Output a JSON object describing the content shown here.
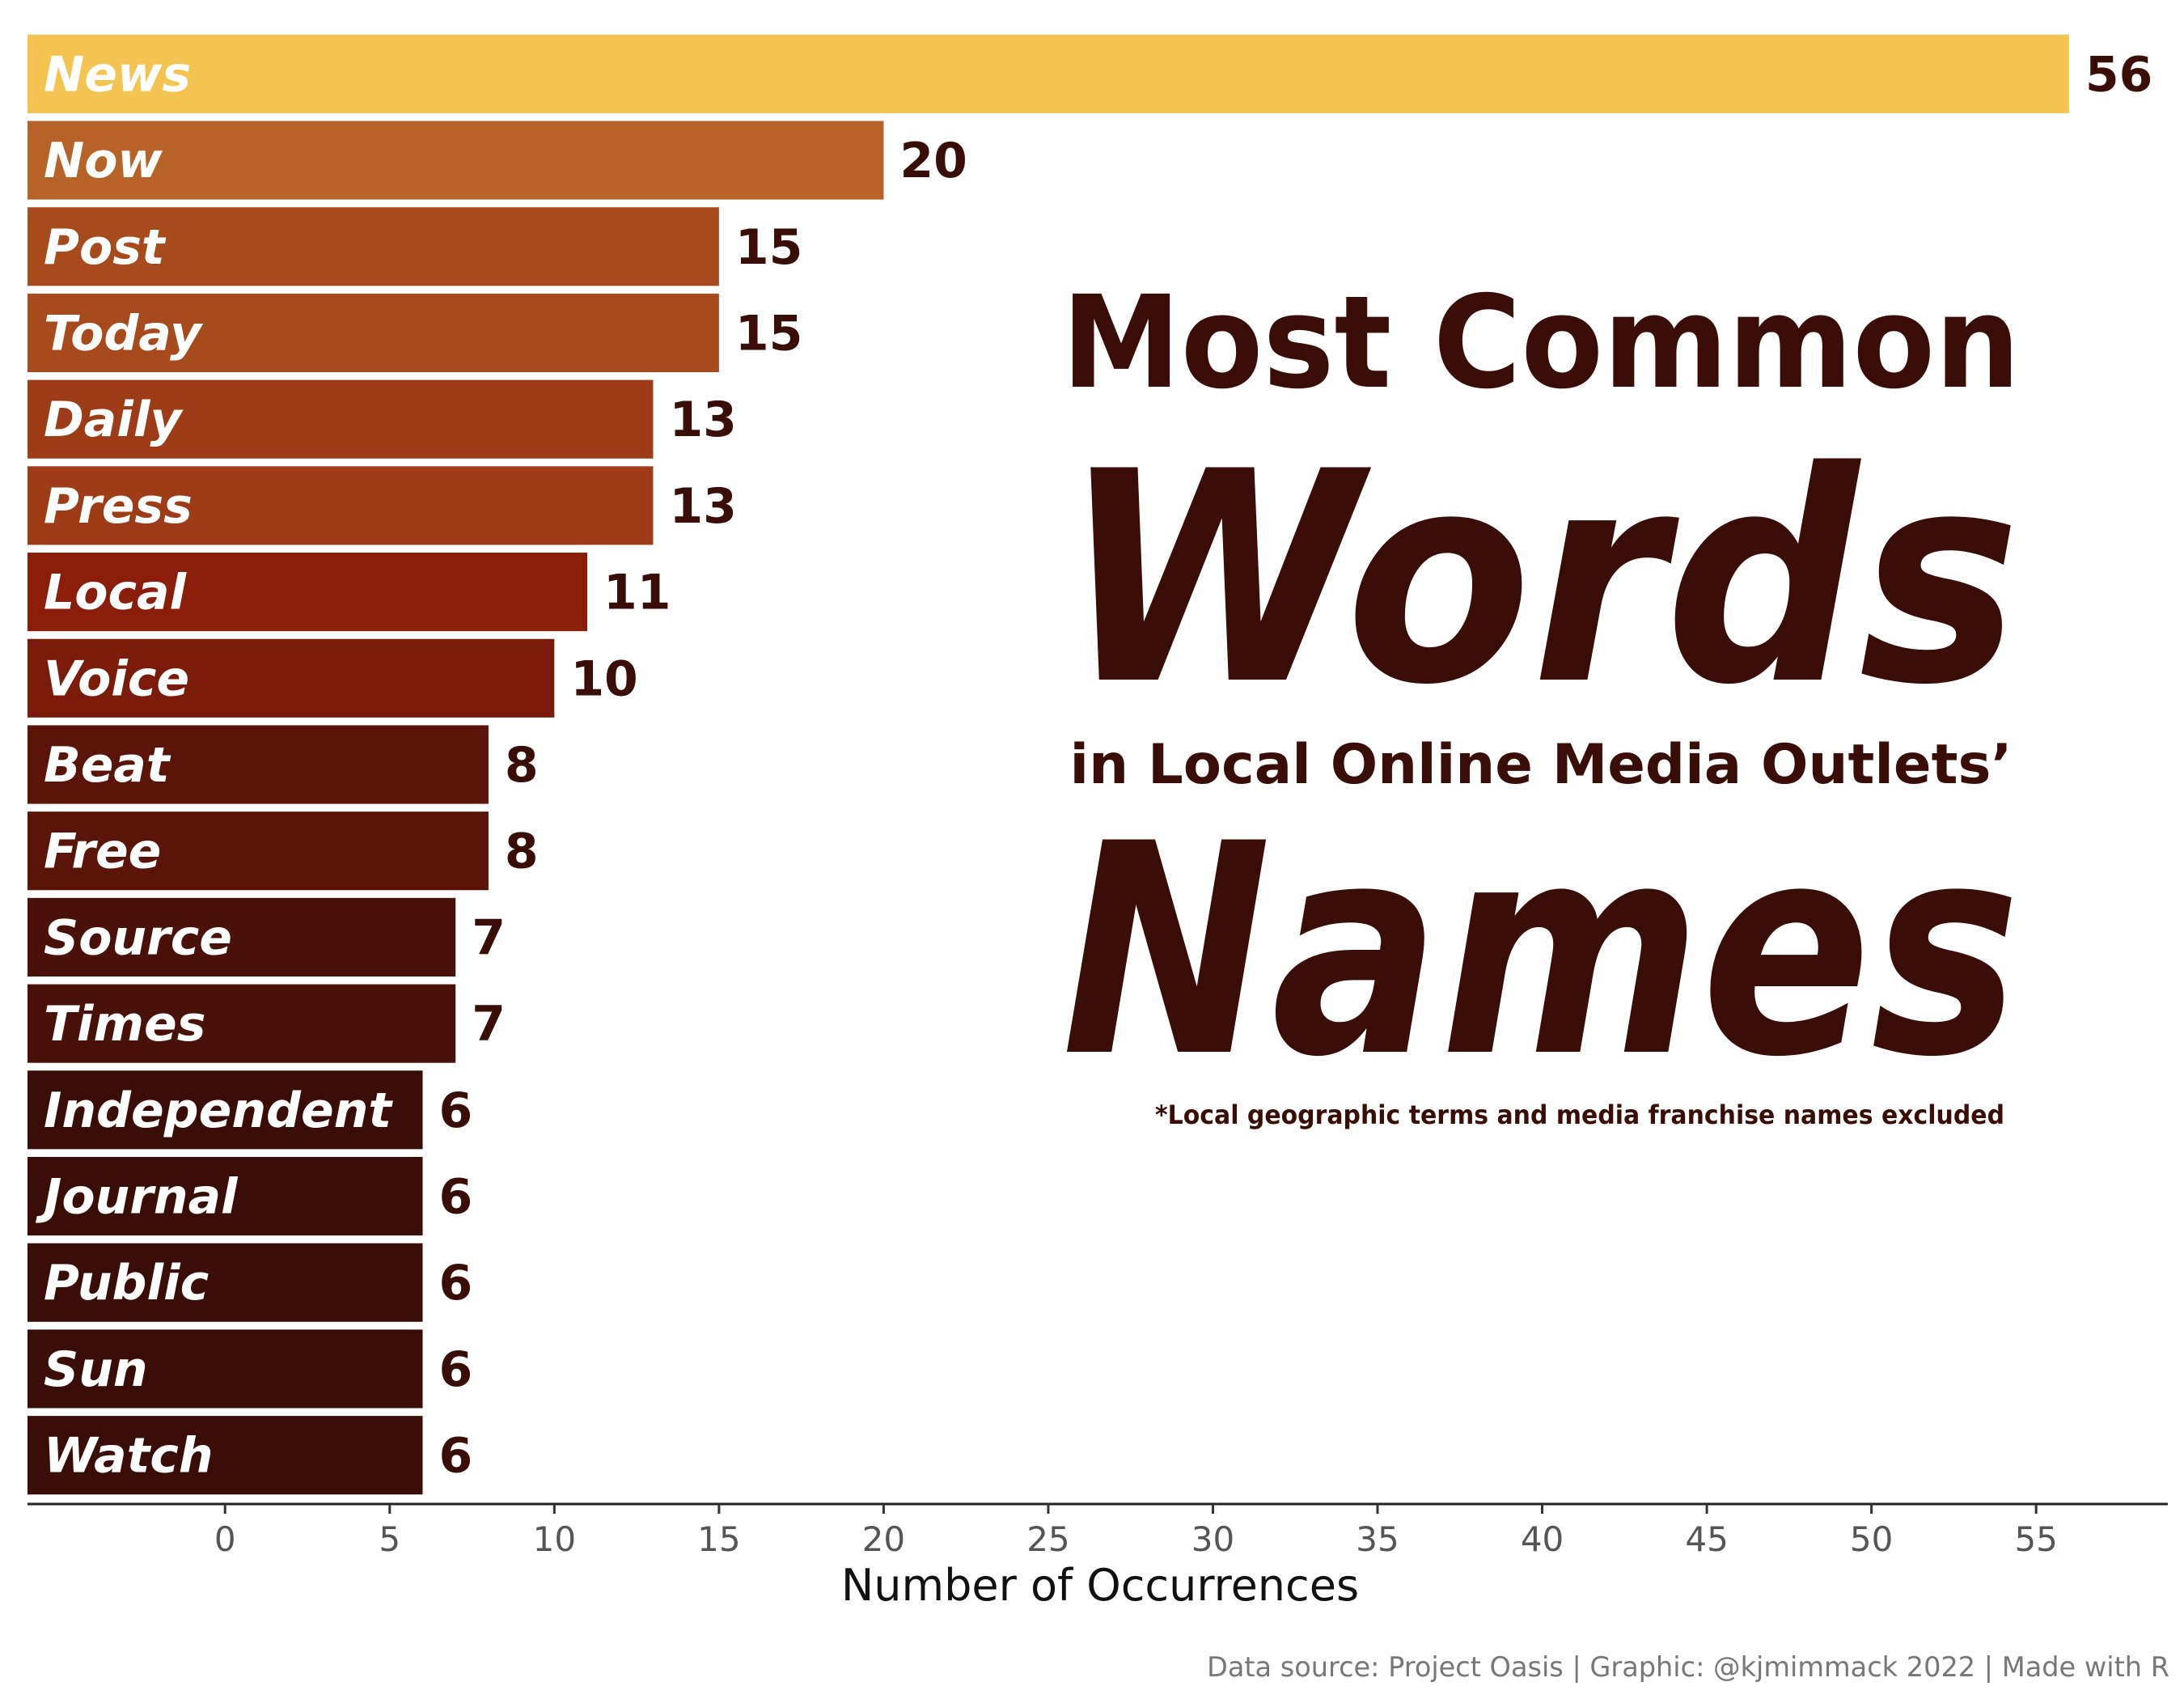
{
  "chart_data": {
    "type": "bar",
    "orientation": "horizontal",
    "categories": [
      "News",
      "Now",
      "Post",
      "Today",
      "Daily",
      "Press",
      "Local",
      "Voice",
      "Beat",
      "Free",
      "Source",
      "Times",
      "Independent",
      "Journal",
      "Public",
      "Sun",
      "Watch"
    ],
    "values": [
      56,
      20,
      15,
      15,
      13,
      13,
      11,
      10,
      8,
      8,
      7,
      7,
      6,
      6,
      6,
      6,
      6
    ],
    "title": {
      "line1": "Most Common",
      "line2": "Words",
      "line3": "in Local Online Media Outlets’",
      "line4": "Names"
    },
    "footnote": "*Local geographic terms and media franchise names excluded",
    "xlabel": "Number of Occurrences",
    "ylabel": "",
    "xlim": [
      -6,
      59
    ],
    "x_ticks": [
      0,
      5,
      10,
      15,
      20,
      25,
      30,
      35,
      40,
      45,
      50,
      55
    ],
    "grid": false,
    "colors": {
      "scale_low": "#3a0e07",
      "scale_mid": "#8b1e0a",
      "scale_high": "#f5c350",
      "text_dark": "#3a0e07"
    },
    "caption": "Data source: Project Oasis | Graphic: @kjmimmack 2022 | Made with R"
  }
}
